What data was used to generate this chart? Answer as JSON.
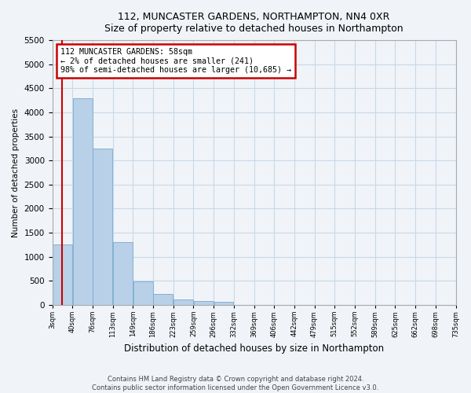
{
  "title": "112, MUNCASTER GARDENS, NORTHAMPTON, NN4 0XR",
  "subtitle": "Size of property relative to detached houses in Northampton",
  "xlabel": "Distribution of detached houses by size in Northampton",
  "ylabel": "Number of detached properties",
  "annotation_title": "112 MUNCASTER GARDENS: 58sqm",
  "annotation_line1": "← 2% of detached houses are smaller (241)",
  "annotation_line2": "98% of semi-detached houses are larger (10,685) →",
  "property_bin": 0.47,
  "bar_color": "#b8d0e8",
  "bar_edge_color": "#7aaacf",
  "vline_color": "#cc0000",
  "annotation_box_color": "#cc0000",
  "background_color": "#f0f4f8",
  "grid_color": "#c8d8e8",
  "footer_line1": "Contains HM Land Registry data © Crown copyright and database right 2024.",
  "footer_line2": "Contains public sector information licensed under the Open Government Licence v3.0.",
  "bin_labels": [
    "3sqm",
    "40sqm",
    "76sqm",
    "113sqm",
    "149sqm",
    "186sqm",
    "223sqm",
    "259sqm",
    "296sqm",
    "332sqm",
    "369sqm",
    "406sqm",
    "442sqm",
    "479sqm",
    "515sqm",
    "552sqm",
    "589sqm",
    "625sqm",
    "662sqm",
    "698sqm",
    "735sqm"
  ],
  "num_bins": 20,
  "counts": [
    1250,
    4300,
    3250,
    1300,
    480,
    220,
    110,
    80,
    60,
    0,
    0,
    0,
    0,
    0,
    0,
    0,
    0,
    0,
    0,
    0
  ],
  "ylim": [
    0,
    5500
  ],
  "yticks": [
    0,
    500,
    1000,
    1500,
    2000,
    2500,
    3000,
    3500,
    4000,
    4500,
    5000,
    5500
  ]
}
